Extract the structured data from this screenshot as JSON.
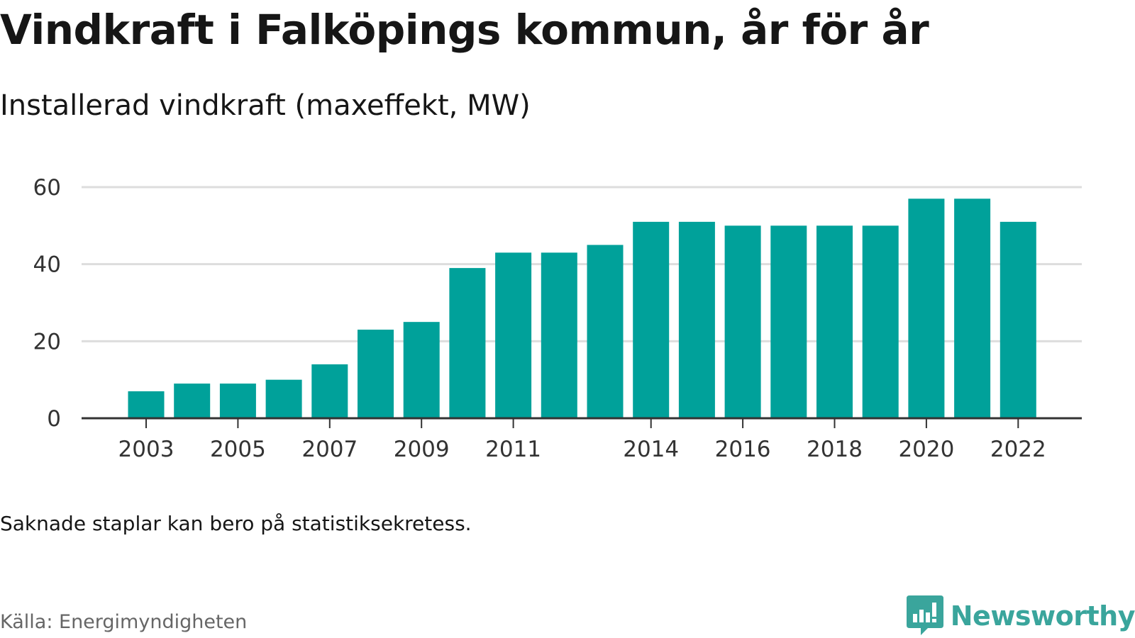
{
  "header": {
    "title": "Vindkraft i Falköpings kommun, år för år",
    "subtitle": "Installerad vindkraft (maxeffekt, MW)"
  },
  "footer": {
    "note": "Saknade staplar kan bero på statistiksekretess.",
    "source": "Källa: Energimyndigheten",
    "brand": "Newsworthy",
    "brand_icon": "newsworthy-logo-icon"
  },
  "colors": {
    "bar": "#00a19a",
    "grid": "#dddddd",
    "axis": "#333333",
    "brand": "#3aa59c"
  },
  "chart_data": {
    "type": "bar",
    "title": "Vindkraft i Falköpings kommun, år för år",
    "subtitle": "Installerad vindkraft (maxeffekt, MW)",
    "xlabel": "",
    "ylabel": "",
    "categories": [
      "2003",
      "2004",
      "2005",
      "2006",
      "2007",
      "2008",
      "2009",
      "2010",
      "2011",
      "2012",
      "2013",
      "2014",
      "2015",
      "2016",
      "2017",
      "2018",
      "2019",
      "2020",
      "2021",
      "2022"
    ],
    "values": [
      7,
      9,
      9,
      10,
      14,
      23,
      25,
      39,
      43,
      43,
      45,
      51,
      51,
      50,
      50,
      50,
      50,
      57,
      57,
      51
    ],
    "x_tick_labels": [
      "2003",
      "2005",
      "2007",
      "2009",
      "2011",
      "2014",
      "2016",
      "2018",
      "2020",
      "2022"
    ],
    "y_ticks": [
      0,
      20,
      40,
      60
    ],
    "ylim": [
      0,
      60
    ],
    "grid": true,
    "legend": "none"
  }
}
